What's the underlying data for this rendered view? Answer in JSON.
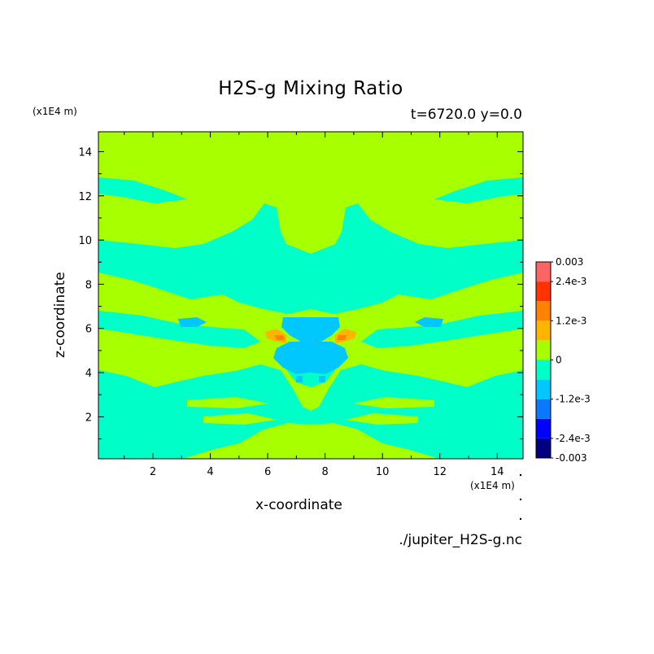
{
  "chart_data": {
    "type": "heatmap",
    "title": "H2S-g Mixing Ratio",
    "subtitle": "t=6720.0 y=0.0",
    "xlabel": "x-coordinate",
    "ylabel": "z-coordinate",
    "x_unit": "(x1E4 m)",
    "y_unit": "(x1E4 m)",
    "xlim": [
      0.1,
      14.9
    ],
    "ylim": [
      0.1,
      14.9
    ],
    "x_ticks": [
      2,
      4,
      6,
      8,
      10,
      12,
      14
    ],
    "y_ticks": [
      2,
      4,
      6,
      8,
      10,
      12,
      14
    ],
    "x_tick_labels": [
      "2",
      "4",
      "6",
      "8",
      "10",
      "12",
      "14"
    ],
    "y_tick_labels": [
      "2",
      "4",
      "6",
      "8",
      "10",
      "12",
      "14"
    ],
    "grid": false,
    "legend": "right colorbar",
    "colorbar": {
      "levels": [
        -0.003,
        -0.0024,
        -0.0018,
        -0.0012,
        -0.0006,
        0,
        0.0006,
        0.0012,
        0.0018,
        0.0024,
        0.003
      ],
      "colors": [
        "#000080",
        "#0000ff",
        "#0a78ff",
        "#00c8ff",
        "#00ffc8",
        "#a8ff00",
        "#ffb400",
        "#ff8200",
        "#ff3200",
        "#ff6464"
      ],
      "labels": [
        {
          "value": 0.003,
          "text": "0.003"
        },
        {
          "value": 0.0024,
          "text": "2.4e-3"
        },
        {
          "value": 0.0012,
          "text": "1.2e-3"
        },
        {
          "value": 0,
          "text": "0"
        },
        {
          "value": -0.0012,
          "text": "-1.2e-3"
        },
        {
          "value": -0.0024,
          "text": "-2.4e-3"
        },
        {
          "value": -0.003,
          "text": "-0.003"
        }
      ]
    },
    "field_colors": {
      "zero_band": "#a8ff00",
      "weak_negative": "#00ffc8",
      "moderate_negative": "#00c8ff",
      "positive": "#ffb400",
      "strong_positive": "#ff8200"
    }
  },
  "footer": {
    "source": "./jupiter_H2S-g.nc"
  }
}
